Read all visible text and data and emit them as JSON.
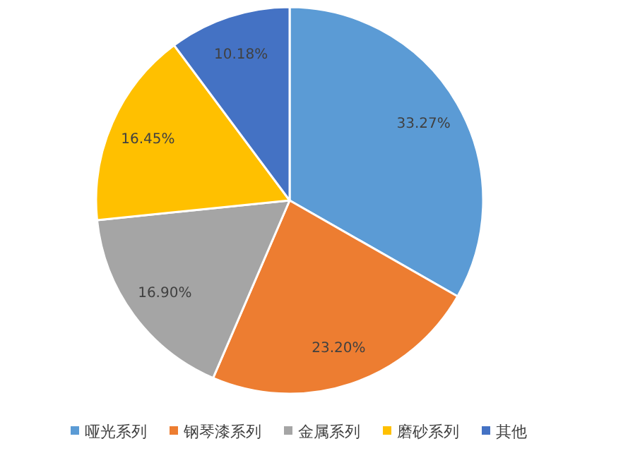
{
  "chart_data": {
    "type": "pie",
    "categories": [
      "哑光系列",
      "钢琴漆系列",
      "金属系列",
      "磨砂系列",
      "其他"
    ],
    "values": [
      33.27,
      23.2,
      16.9,
      16.45,
      10.18
    ],
    "colors": [
      "#5b9bd5",
      "#ed7d31",
      "#a5a5a5",
      "#ffc000",
      "#4472c4"
    ],
    "value_labels": [
      "33.27%",
      "23.20%",
      "16.90%",
      "16.45%",
      "10.18%"
    ],
    "legend": "bottom"
  }
}
